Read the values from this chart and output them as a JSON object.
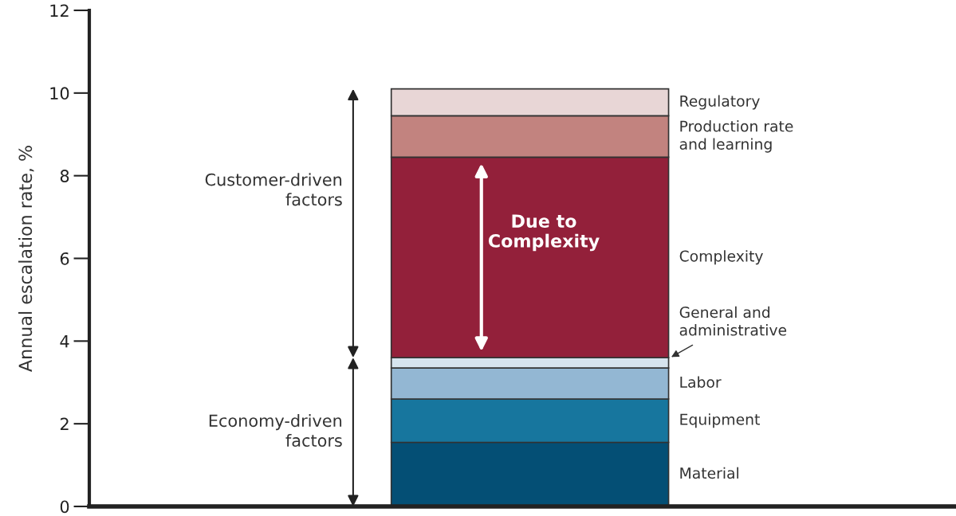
{
  "chart_data": {
    "type": "bar",
    "stacked": true,
    "ylabel": "Annual escalation rate, %",
    "categories": [
      null
    ],
    "series": [
      {
        "name": "Material",
        "color": "#044f75",
        "values": [
          1.55
        ]
      },
      {
        "name": "Equipment",
        "color": "#17769e",
        "values": [
          1.05
        ]
      },
      {
        "name": "Labor",
        "color": "#93b7d3",
        "values": [
          0.75
        ]
      },
      {
        "name": "General and administrative",
        "color": "#d6e4ee",
        "values": [
          0.25
        ]
      },
      {
        "name": "Complexity",
        "color": "#93203a",
        "values": [
          4.85
        ]
      },
      {
        "name": "Production rate and learning",
        "color": "#c2837f",
        "values": [
          1.0
        ]
      },
      {
        "name": "Regulatory",
        "color": "#e8d6d6",
        "values": [
          0.65
        ]
      }
    ],
    "ylim": [
      0,
      12
    ],
    "yticks": [
      0,
      2,
      4,
      6,
      8,
      10,
      12
    ],
    "grid": false,
    "legend": false,
    "annotations": [
      "Economy-driven factors",
      "Customer-driven factors",
      "Due to Complexity"
    ]
  }
}
